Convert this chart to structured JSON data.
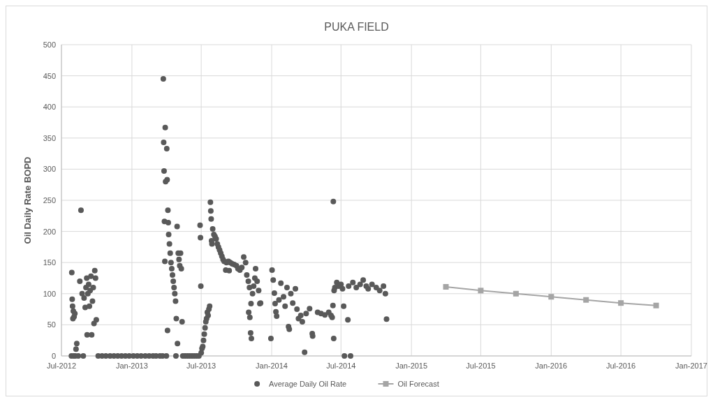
{
  "chart_data": {
    "type": "scatter",
    "title": "PUKA FIELD",
    "ylabel": "Oil Daily Rate BOPD",
    "xlim": [
      "2012-07-01",
      "2017-01-01"
    ],
    "xticks": [
      {
        "value": "2012-07-01",
        "label": "Jul-2012"
      },
      {
        "value": "2013-01-01",
        "label": "Jan-2013"
      },
      {
        "value": "2013-07-01",
        "label": "Jul-2013"
      },
      {
        "value": "2014-01-01",
        "label": "Jan-2014"
      },
      {
        "value": "2014-07-01",
        "label": "Jul-2014"
      },
      {
        "value": "2015-01-01",
        "label": "Jan-2015"
      },
      {
        "value": "2015-07-01",
        "label": "Jul-2015"
      },
      {
        "value": "2016-01-01",
        "label": "Jan-2016"
      },
      {
        "value": "2016-07-01",
        "label": "Jul-2016"
      },
      {
        "value": "2017-01-01",
        "label": "Jan-2017"
      }
    ],
    "ylim": [
      0,
      500
    ],
    "yticks": [
      0,
      50,
      100,
      150,
      200,
      250,
      300,
      350,
      400,
      450,
      500
    ],
    "grid": true,
    "legend": "bottom",
    "series": [
      {
        "name": "Average Daily Oil Rate",
        "marker": "circle",
        "color": "#595959",
        "x": [
          "2012-07-27",
          "2012-07-28",
          "2012-07-29",
          "2012-07-30",
          "2012-07-31",
          "2012-08-01",
          "2012-08-02",
          "2012-08-03",
          "2012-08-05",
          "2012-08-06",
          "2012-08-08",
          "2012-08-10",
          "2012-08-14",
          "2012-08-18",
          "2012-08-21",
          "2012-08-24",
          "2012-08-27",
          "2012-08-29",
          "2012-09-01",
          "2012-09-03",
          "2012-09-05",
          "2012-09-06",
          "2012-09-08",
          "2012-09-10",
          "2012-09-12",
          "2012-09-14",
          "2012-09-16",
          "2012-09-18",
          "2012-09-20",
          "2012-09-22",
          "2012-09-24",
          "2012-09-26",
          "2012-09-28",
          "2012-09-30",
          "2012-10-05",
          "2012-10-15",
          "2012-10-25",
          "2012-11-05",
          "2012-11-15",
          "2012-11-25",
          "2012-12-05",
          "2012-12-15",
          "2012-12-25",
          "2013-01-05",
          "2013-01-15",
          "2013-01-25",
          "2013-02-05",
          "2013-02-15",
          "2013-02-25",
          "2013-03-05",
          "2013-03-15",
          "2013-03-22",
          "2013-03-24",
          "2013-03-25",
          "2013-03-26",
          "2013-03-27",
          "2013-03-28",
          "2013-03-29",
          "2013-03-30",
          "2013-04-01",
          "2013-04-02",
          "2013-04-03",
          "2013-04-04",
          "2013-04-05",
          "2013-04-06",
          "2013-04-07",
          "2013-04-09",
          "2013-04-11",
          "2013-04-13",
          "2013-04-15",
          "2013-04-17",
          "2013-04-19",
          "2013-04-21",
          "2013-04-23",
          "2013-04-25",
          "2013-04-26",
          "2013-04-27",
          "2013-04-29",
          "2013-04-30",
          "2013-05-02",
          "2013-05-04",
          "2013-05-06",
          "2013-05-08",
          "2013-05-10",
          "2013-05-12",
          "2013-05-14",
          "2013-05-20",
          "2013-05-26",
          "2013-06-01",
          "2013-06-07",
          "2013-06-13",
          "2013-06-19",
          "2013-06-25",
          "2013-06-28",
          "2013-06-29",
          "2013-06-30",
          "2013-07-01",
          "2013-07-03",
          "2013-07-05",
          "2013-07-07",
          "2013-07-09",
          "2013-07-11",
          "2013-07-13",
          "2013-07-15",
          "2013-07-17",
          "2013-07-19",
          "2013-07-21",
          "2013-07-23",
          "2013-07-25",
          "2013-07-26",
          "2013-07-27",
          "2013-07-28",
          "2013-07-29",
          "2013-07-31",
          "2013-08-03",
          "2013-08-06",
          "2013-08-09",
          "2013-08-12",
          "2013-08-15",
          "2013-08-18",
          "2013-08-21",
          "2013-08-24",
          "2013-08-27",
          "2013-08-30",
          "2013-09-03",
          "2013-09-05",
          "2013-09-10",
          "2013-09-12",
          "2013-09-15",
          "2013-09-20",
          "2013-09-25",
          "2013-10-01",
          "2013-10-05",
          "2013-10-10",
          "2013-10-15",
          "2013-10-20",
          "2013-10-25",
          "2013-10-28",
          "2013-11-01",
          "2013-11-02",
          "2013-11-04",
          "2013-11-05",
          "2013-11-07",
          "2013-11-08",
          "2013-11-09",
          "2013-11-12",
          "2013-11-15",
          "2013-11-18",
          "2013-11-20",
          "2013-11-24",
          "2013-11-28",
          "2013-12-01",
          "2013-12-03",
          "2013-12-30",
          "2014-01-02",
          "2014-01-05",
          "2014-01-08",
          "2014-01-10",
          "2014-01-12",
          "2014-01-14",
          "2014-01-20",
          "2014-01-25",
          "2014-02-01",
          "2014-02-05",
          "2014-02-10",
          "2014-02-14",
          "2014-02-16",
          "2014-02-20",
          "2014-02-25",
          "2014-03-04",
          "2014-03-08",
          "2014-03-12",
          "2014-03-18",
          "2014-03-22",
          "2014-03-28",
          "2014-04-01",
          "2014-04-10",
          "2014-04-17",
          "2014-04-18",
          "2014-05-01",
          "2014-05-10",
          "2014-05-20",
          "2014-05-30",
          "2014-06-05",
          "2014-06-08",
          "2014-06-10",
          "2014-06-11",
          "2014-06-12",
          "2014-06-13",
          "2014-06-15",
          "2014-06-20",
          "2014-06-25",
          "2014-07-01",
          "2014-07-05",
          "2014-07-08",
          "2014-07-10",
          "2014-07-26",
          "2014-07-19",
          "2014-07-21",
          "2014-08-01",
          "2014-08-10",
          "2014-08-20",
          "2014-08-28",
          "2014-09-05",
          "2014-09-10",
          "2014-09-20",
          "2014-10-01",
          "2014-10-10",
          "2014-10-20",
          "2014-10-25",
          "2014-10-28"
        ],
        "values": [
          0,
          134,
          91,
          80,
          60,
          72,
          0,
          63,
          68,
          0,
          11,
          20,
          0,
          120,
          234,
          100,
          0,
          93,
          78,
          110,
          125,
          34,
          100,
          115,
          80,
          105,
          128,
          34,
          88,
          110,
          52,
          137,
          125,
          58,
          0,
          0,
          0,
          0,
          0,
          0,
          0,
          0,
          0,
          0,
          0,
          0,
          0,
          0,
          0,
          0,
          0,
          0,
          445,
          343,
          297,
          216,
          152,
          367,
          280,
          0,
          333,
          283,
          41,
          234,
          214,
          195,
          180,
          165,
          150,
          140,
          130,
          120,
          110,
          100,
          88,
          0,
          60,
          208,
          20,
          165,
          155,
          145,
          165,
          140,
          55,
          0,
          0,
          0,
          0,
          0,
          0,
          0,
          0,
          210,
          190,
          112,
          5,
          12,
          15,
          25,
          35,
          45,
          55,
          60,
          70,
          65,
          75,
          80,
          247,
          233,
          220,
          185,
          180,
          204,
          195,
          192,
          188,
          180,
          175,
          170,
          165,
          160,
          155,
          152,
          138,
          150,
          152,
          137,
          150,
          148,
          147,
          145,
          140,
          138,
          142,
          159,
          150,
          130,
          120,
          70,
          110,
          62,
          37,
          84,
          28,
          100,
          112,
          125,
          140,
          120,
          105,
          84,
          85,
          28,
          138,
          122,
          101,
          84,
          71,
          64,
          90,
          117,
          95,
          80,
          110,
          47,
          43,
          100,
          85,
          108,
          75,
          60,
          65,
          55,
          6,
          68,
          76,
          36,
          32,
          70,
          68,
          66,
          70,
          65,
          62,
          81,
          248,
          28,
          105,
          110,
          118,
          112,
          115,
          108,
          80,
          0,
          0,
          58,
          112,
          118,
          110,
          115,
          122,
          112,
          108,
          115,
          110,
          105,
          112,
          100,
          59
        ]
      },
      {
        "name": "Oil Forecast",
        "type": "line",
        "marker": "square",
        "line_style": "solid",
        "color": "#a5a5a5",
        "x": [
          "2015-04-01",
          "2015-07-01",
          "2015-10-01",
          "2016-01-01",
          "2016-04-01",
          "2016-07-01",
          "2016-10-01"
        ],
        "values": [
          111,
          105,
          100,
          95,
          90,
          85,
          81
        ]
      }
    ]
  }
}
